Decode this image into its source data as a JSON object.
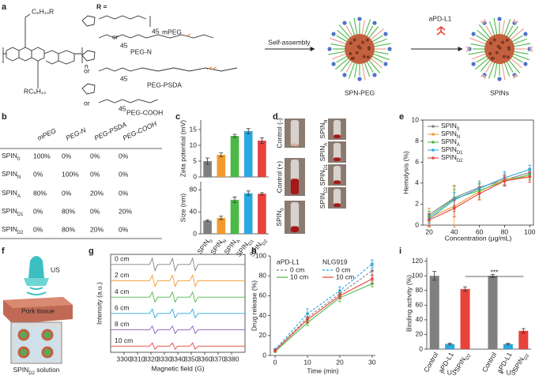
{
  "panel_labels": [
    "a",
    "b",
    "c",
    "d",
    "e",
    "f",
    "g",
    "h",
    "i"
  ],
  "scheme": {
    "r_label": "R =",
    "side_chains": [
      "C₆H₁₃R",
      "RC₆H₁₃"
    ],
    "n": "n",
    "or_labels": [
      "or",
      "or",
      "or"
    ],
    "peg_names": [
      "mPEG",
      "PEG-N",
      "PEG-PSDA",
      "PEG-COOH"
    ],
    "repeat": [
      "45",
      "45",
      "45",
      "45"
    ],
    "arrow1": "Self-assembly",
    "np1": "SPN-PEG",
    "arrow2": "aPD-L1",
    "np2": "SPINs"
  },
  "table": {
    "header": [
      "mPEG",
      "PEG-N",
      "PEG-PSDA",
      "PEG-COOH"
    ],
    "rows": [
      [
        {
          "base": "SPIN",
          "sub": "0"
        },
        "100%",
        "0%",
        "0%",
        "0%"
      ],
      [
        {
          "base": "SPIN",
          "sub": "N"
        },
        "0%",
        "100%",
        "0%",
        "0%"
      ],
      [
        {
          "base": "SPIN",
          "sub": "A"
        },
        "80%",
        "0%",
        "20%",
        "0%"
      ],
      [
        {
          "base": "SPIN",
          "sub": "D1"
        },
        "0%",
        "80%",
        "0%",
        "20%"
      ],
      [
        {
          "base": "SPIN",
          "sub": "D2"
        },
        "0%",
        "80%",
        "20%",
        "0%"
      ]
    ]
  },
  "photos": {
    "labels": [
      "Control (-)",
      "Control (+)",
      {
        "base": "SPIN",
        "sub": "0"
      },
      {
        "base": "SPIN",
        "sub": "N"
      },
      {
        "base": "SPIN",
        "sub": "A"
      },
      {
        "base": "SPIN",
        "sub": "D1"
      },
      {
        "base": "SPIN",
        "sub": "D2"
      }
    ]
  },
  "setup": {
    "transducer": "US",
    "tissue": "Pork tissue",
    "solution": {
      "base": "SPIN",
      "sub": "D2",
      "tail": " solution"
    }
  },
  "chart_data": [
    {
      "type": "bar",
      "categories": [
        {
          "base": "SPIN",
          "sub": "0"
        },
        {
          "base": "SPIN",
          "sub": "N"
        },
        {
          "base": "SPIN",
          "sub": "A"
        },
        {
          "base": "SPIN",
          "sub": "D1"
        },
        {
          "base": "SPIN",
          "sub": "D2"
        }
      ],
      "colors": [
        "#808080",
        "#f39a2e",
        "#4cb848",
        "#2aa8e0",
        "#e8423c"
      ],
      "series": [
        {
          "name": "Zeta potential (mV)",
          "values": [
            5,
            7,
            13,
            14.5,
            11.5
          ],
          "errors": [
            1,
            0.6,
            0.5,
            0.8,
            0.9
          ],
          "ylim": [
            0,
            18
          ],
          "yticks": [
            0,
            5,
            10,
            15
          ]
        },
        {
          "name": "Size (nm)",
          "values": [
            24,
            29,
            62,
            74,
            73
          ],
          "errors": [
            1.5,
            3,
            5,
            4,
            2
          ],
          "ylim": [
            0,
            95
          ],
          "yticks": [
            0,
            40,
            80
          ]
        }
      ]
    },
    {
      "type": "line",
      "xlabel": "Concentration (μg/mL)",
      "ylabel": "Hemolysis (%)",
      "x": [
        20,
        40,
        60,
        80,
        100
      ],
      "xlim": [
        15,
        103
      ],
      "xticks": [
        20,
        40,
        60,
        80,
        100
      ],
      "ylim": [
        0,
        10
      ],
      "yticks": [
        0,
        2,
        4,
        6,
        8,
        10
      ],
      "legend": "upper left",
      "series": [
        {
          "name": {
            "base": "SPIN",
            "sub": "0"
          },
          "color": "#808080",
          "values": [
            1.0,
            2.6,
            3.6,
            4.3,
            5.0
          ],
          "errors": [
            0.6,
            0.8,
            0.6,
            0.5,
            0.4
          ]
        },
        {
          "name": {
            "base": "SPIN",
            "sub": "N"
          },
          "color": "#f39a2e",
          "values": [
            0.7,
            1.8,
            3.2,
            4.4,
            4.6
          ],
          "errors": [
            0.9,
            2.0,
            0.7,
            0.5,
            0.5
          ]
        },
        {
          "name": {
            "base": "SPIN",
            "sub": "A"
          },
          "color": "#4cb848",
          "values": [
            0.8,
            2.5,
            3.3,
            4.2,
            4.8
          ],
          "errors": [
            0.5,
            1.2,
            0.6,
            0.4,
            0.5
          ]
        },
        {
          "name": {
            "base": "SPIN",
            "sub": "D1"
          },
          "color": "#2aa8e0",
          "values": [
            0.6,
            2.4,
            3.5,
            4.5,
            5.3
          ],
          "errors": [
            0.4,
            0.7,
            0.5,
            0.6,
            0.4
          ]
        },
        {
          "name": {
            "base": "SPIN",
            "sub": "D2"
          },
          "color": "#e8423c",
          "values": [
            0.5,
            1.6,
            3.0,
            4.2,
            4.6
          ],
          "errors": [
            0.6,
            0.8,
            0.6,
            0.5,
            0.5
          ]
        }
      ]
    },
    {
      "type": "line",
      "layout": "stacked",
      "legend": "inline",
      "xlabel": "Magnetic field (G)",
      "ylabel": "Intensity (a.u.)",
      "x": [
        3290,
        3319,
        3321,
        3323,
        3325,
        3334,
        3336,
        3338,
        3340,
        3349,
        3351,
        3353,
        3355,
        3390
      ],
      "xlim": [
        3290,
        3390
      ],
      "xticks": [
        3300,
        3310,
        3320,
        3330,
        3340,
        3350,
        3360,
        3370,
        3380
      ],
      "series": [
        {
          "name": "0 cm",
          "color": "#808080",
          "values": [
            0,
            0,
            1,
            -1,
            0,
            0,
            1,
            -1,
            0,
            0,
            1,
            -1,
            0,
            0
          ]
        },
        {
          "name": "2 cm",
          "color": "#f39a2e",
          "values": [
            0,
            0,
            0.9,
            -0.9,
            0,
            0,
            0.9,
            -0.9,
            0,
            0,
            0.9,
            -0.9,
            0,
            0
          ]
        },
        {
          "name": "4 cm",
          "color": "#4cb848",
          "values": [
            0,
            0,
            0.8,
            -0.8,
            0,
            0,
            0.8,
            -0.8,
            0,
            0,
            0.8,
            -0.8,
            0,
            0
          ]
        },
        {
          "name": "6 cm",
          "color": "#2aa8e0",
          "values": [
            0,
            0,
            0.7,
            -0.7,
            0,
            0,
            0.7,
            -0.7,
            0,
            0,
            0.7,
            -0.7,
            0,
            0
          ]
        },
        {
          "name": "8 cm",
          "color": "#8a5bbd",
          "values": [
            0,
            0,
            0.6,
            -0.6,
            0,
            0,
            0.6,
            -0.6,
            0,
            0,
            0.6,
            -0.6,
            0,
            0
          ]
        },
        {
          "name": "10 cm",
          "color": "#e8423c",
          "values": [
            0,
            0,
            0.5,
            -0.5,
            0,
            0,
            0.5,
            -0.5,
            0,
            0,
            0.5,
            -0.5,
            0,
            0
          ]
        }
      ]
    },
    {
      "type": "line",
      "xlabel": "Time (min)",
      "ylabel": "Drug release (%)",
      "x": [
        0,
        10,
        20,
        30
      ],
      "xlim": [
        -1.5,
        31
      ],
      "xticks": [
        0,
        10,
        20,
        30
      ],
      "ylim": [
        0,
        100
      ],
      "yticks": [
        0,
        20,
        40,
        60,
        80,
        100
      ],
      "legend": "upper left",
      "legend_groups": [
        "aPD-L1",
        "NLG919"
      ],
      "series": [
        {
          "name": "0 cm",
          "color": "#808080",
          "dash": true,
          "values": [
            5,
            38,
            62,
            85
          ],
          "errors": [
            1,
            4,
            3,
            5
          ]
        },
        {
          "name": "10 cm",
          "color": "#4cb848",
          "dash": false,
          "values": [
            4,
            33,
            58,
            72
          ],
          "errors": [
            1,
            3,
            4,
            3
          ]
        },
        {
          "name": "0 cm",
          "color": "#2aa8e0",
          "dash": true,
          "values": [
            6,
            42,
            65,
            92
          ],
          "errors": [
            1,
            5,
            4,
            4
          ]
        },
        {
          "name": "10 cm",
          "color": "#e8423c",
          "dash": false,
          "values": [
            5,
            36,
            60,
            77
          ],
          "errors": [
            1,
            3,
            3,
            4
          ]
        }
      ]
    },
    {
      "type": "bar",
      "categories": [
        "Control",
        "aPD-L1",
        {
          "base": "SPIN",
          "sub": "D2"
        },
        "Control",
        "aPD-L1",
        {
          "base": "SPIN",
          "sub": "D2"
        }
      ],
      "group_labels": [
        "- US",
        "+ US"
      ],
      "annotation": "***",
      "colors": [
        "#808080",
        "#2aa8e0",
        "#e8423c",
        "#808080",
        "#2aa8e0",
        "#e8423c"
      ],
      "series": [
        {
          "name": "Binding activity (%)",
          "values": [
            100,
            7,
            82,
            100,
            7,
            25
          ],
          "errors": [
            6,
            1,
            3,
            2,
            1,
            3
          ],
          "ylim": [
            0,
            125
          ],
          "yticks": [
            0,
            20,
            40,
            60,
            80,
            100,
            120
          ]
        }
      ]
    }
  ]
}
